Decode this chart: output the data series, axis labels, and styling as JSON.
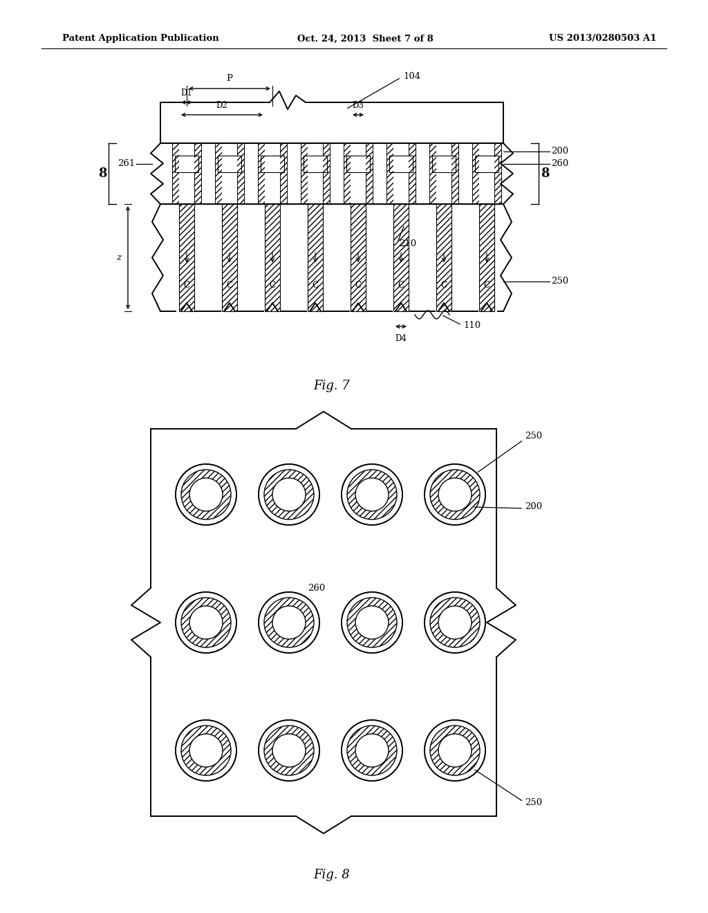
{
  "header_left": "Patent Application Publication",
  "header_center": "Oct. 24, 2013  Sheet 7 of 8",
  "header_right": "US 2013/0280503 A1",
  "fig7_label": "Fig. 7",
  "fig8_label": "Fig. 8",
  "bg_color": "#ffffff",
  "line_color": "#000000"
}
